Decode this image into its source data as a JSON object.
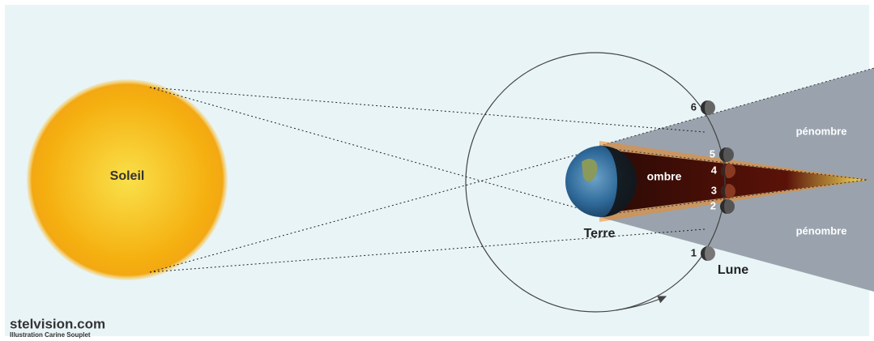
{
  "sun": {
    "label": "Soleil"
  },
  "earth": {
    "label": "Terre"
  },
  "umbra": {
    "label": "ombre"
  },
  "penumbra_top": {
    "label": "pénombre"
  },
  "penumbra_bottom": {
    "label": "pénombre"
  },
  "moon": {
    "label": "Lune"
  },
  "moon_positions": [
    1,
    2,
    3,
    4,
    5,
    6
  ],
  "credit": {
    "site": "stelvision.com",
    "author": "Illustration Carine Souplet"
  }
}
